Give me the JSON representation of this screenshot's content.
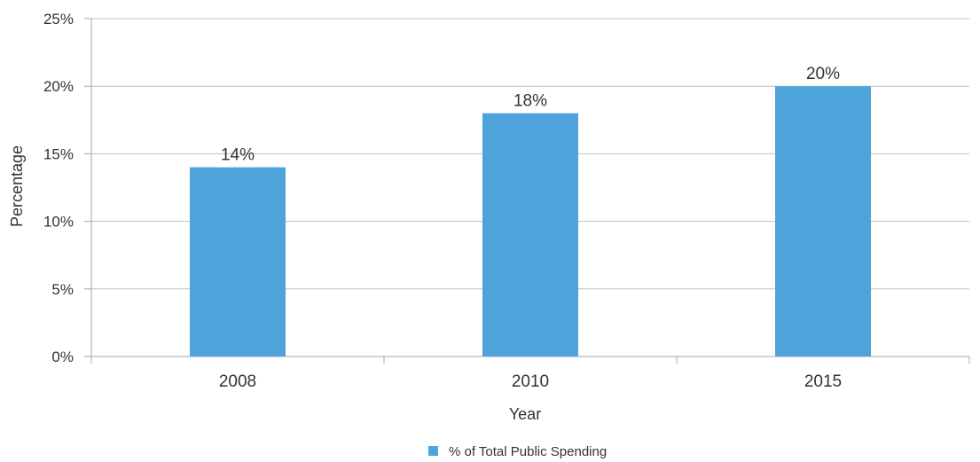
{
  "chart_data": {
    "type": "bar",
    "categories": [
      "2008",
      "2010",
      "2015"
    ],
    "series": [
      {
        "name": "% of Total Public Spending",
        "values": [
          14,
          18,
          20
        ],
        "color": "#4EA3DB"
      }
    ],
    "data_labels": [
      "14%",
      "18%",
      "20%"
    ],
    "xlabel": "Year",
    "ylabel": "Percentage",
    "ylim": [
      0,
      25
    ],
    "yticks": [
      0,
      5,
      10,
      15,
      20,
      25
    ],
    "ytick_labels": [
      "0%",
      "5%",
      "10%",
      "15%",
      "20%",
      "25%"
    ],
    "grid": true,
    "gridline_color": "#bfbfbf",
    "legend_position": "bottom"
  }
}
